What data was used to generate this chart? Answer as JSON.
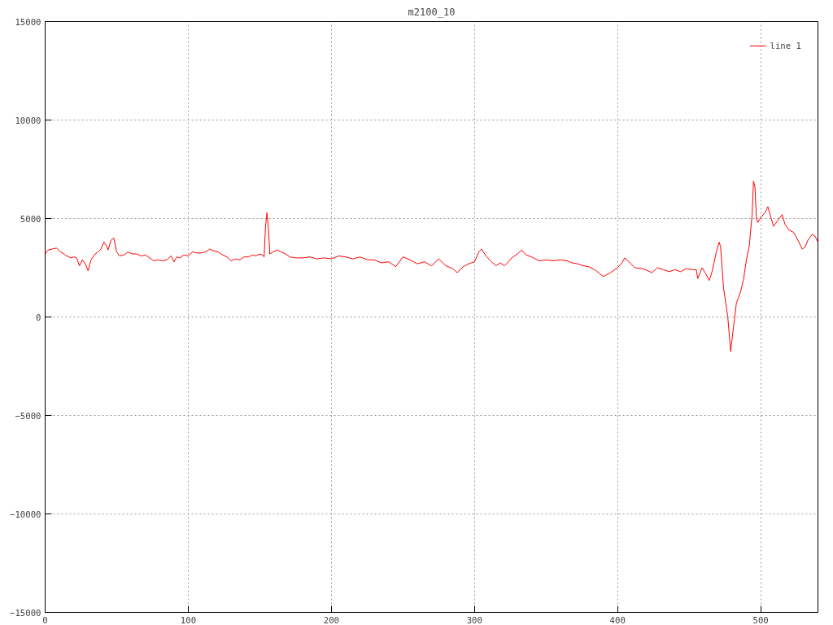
{
  "chart_data": {
    "type": "line",
    "title": "m2100_10",
    "x": [
      0,
      2,
      5,
      8,
      10,
      13,
      15,
      18,
      20,
      22,
      24,
      26,
      28,
      30,
      32,
      35,
      37,
      39,
      41,
      43,
      44,
      46,
      48,
      50,
      52,
      55,
      58,
      61,
      64,
      67,
      70,
      73,
      76,
      79,
      82,
      85,
      88,
      90,
      92,
      94,
      97,
      100,
      103,
      106,
      109,
      112,
      115,
      118,
      121,
      124,
      127,
      130,
      133,
      136,
      139,
      142,
      145,
      147,
      150,
      152,
      153,
      154,
      155,
      156,
      157,
      159,
      162,
      165,
      168,
      171,
      175,
      180,
      185,
      190,
      195,
      200,
      205,
      210,
      215,
      220,
      225,
      230,
      235,
      240,
      245,
      250,
      255,
      260,
      265,
      270,
      275,
      280,
      285,
      288,
      292,
      296,
      300,
      303,
      305,
      308,
      312,
      315,
      318,
      321,
      323,
      326,
      330,
      333,
      336,
      340,
      345,
      350,
      355,
      360,
      365,
      368,
      372,
      376,
      380,
      385,
      390,
      395,
      400,
      403,
      405,
      408,
      412,
      418,
      424,
      428,
      432,
      436,
      440,
      444,
      448,
      452,
      455,
      456,
      459,
      462,
      464,
      466,
      469,
      471,
      472,
      474,
      477,
      479,
      481,
      483,
      486,
      488,
      490,
      492,
      494,
      495,
      496,
      497,
      498,
      500,
      503,
      505,
      507,
      509,
      512,
      515,
      517,
      520,
      523,
      526,
      529,
      531,
      533,
      536,
      538,
      540
    ],
    "series": [
      {
        "name": "line 1",
        "color": "#ff0000",
        "values": [
          3200,
          3400,
          3450,
          3500,
          3350,
          3200,
          3100,
          3000,
          3050,
          3000,
          2600,
          2900,
          2700,
          2350,
          2900,
          3200,
          3300,
          3450,
          3800,
          3600,
          3400,
          3900,
          4000,
          3300,
          3100,
          3150,
          3300,
          3200,
          3200,
          3100,
          3150,
          3000,
          2850,
          2900,
          2850,
          2900,
          3100,
          2800,
          3050,
          3000,
          3150,
          3100,
          3300,
          3250,
          3250,
          3300,
          3450,
          3350,
          3300,
          3150,
          3050,
          2850,
          2950,
          2900,
          3050,
          3050,
          3150,
          3100,
          3200,
          3150,
          3050,
          4600,
          5300,
          4500,
          3200,
          3300,
          3400,
          3300,
          3200,
          3050,
          3000,
          3000,
          3050,
          2950,
          3000,
          2950,
          3100,
          3050,
          2950,
          3050,
          2900,
          2900,
          2750,
          2800,
          2550,
          3050,
          2900,
          2700,
          2800,
          2600,
          2950,
          2600,
          2450,
          2250,
          2550,
          2700,
          2800,
          3300,
          3450,
          3100,
          2800,
          2600,
          2750,
          2600,
          2750,
          3000,
          3200,
          3400,
          3150,
          3050,
          2850,
          2900,
          2850,
          2900,
          2850,
          2750,
          2700,
          2600,
          2550,
          2350,
          2050,
          2250,
          2500,
          2750,
          3000,
          2800,
          2500,
          2450,
          2250,
          2500,
          2400,
          2300,
          2400,
          2300,
          2450,
          2400,
          2400,
          1950,
          2500,
          2150,
          1850,
          2300,
          3300,
          3800,
          3550,
          1500,
          0,
          -1750,
          -500,
          700,
          1300,
          1900,
          2900,
          3600,
          5200,
          6900,
          6600,
          5000,
          4800,
          5050,
          5300,
          5600,
          5100,
          4600,
          4900,
          5200,
          4700,
          4400,
          4300,
          3900,
          3450,
          3550,
          3900,
          4200,
          4100,
          3800
        ]
      }
    ],
    "xlim": [
      0,
      540
    ],
    "xticks": [
      0,
      100,
      200,
      300,
      400,
      500
    ],
    "ylim": [
      -15000,
      15000
    ],
    "yticks": [
      -15000,
      -10000,
      -5000,
      0,
      5000,
      10000,
      15000
    ],
    "grid": true,
    "legend": "top right",
    "line_style": "solid",
    "marker": "none"
  }
}
